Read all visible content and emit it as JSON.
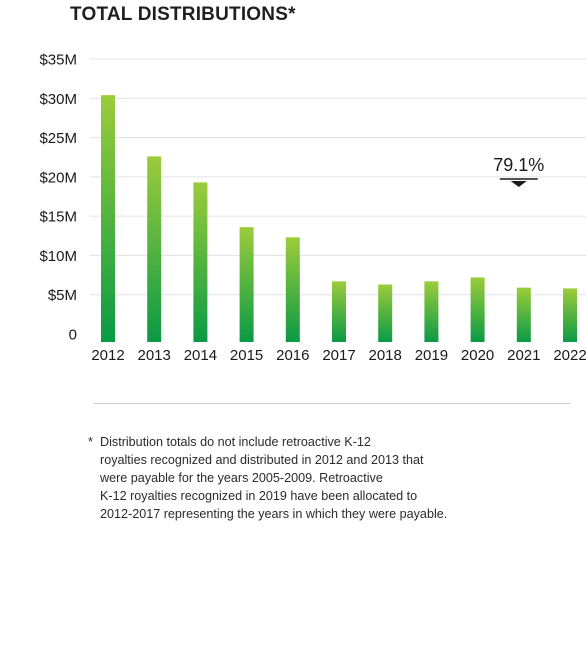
{
  "chart_data": {
    "type": "bar",
    "title": "TOTAL DISTRIBUTIONS*",
    "categories": [
      "2012",
      "2013",
      "2014",
      "2015",
      "2016",
      "2017",
      "2018",
      "2019",
      "2020",
      "2021",
      "2022"
    ],
    "values": [
      30.4,
      22.6,
      19.3,
      13.6,
      12.3,
      6.7,
      6.3,
      6.7,
      7.2,
      5.9,
      5.8
    ],
    "unit": "$M",
    "ylim": [
      0,
      35
    ],
    "yticks": [
      {
        "value": 0,
        "label": "0"
      },
      {
        "value": 5,
        "label": "$5M"
      },
      {
        "value": 10,
        "label": "$10M"
      },
      {
        "value": 15,
        "label": "$15M"
      },
      {
        "value": 20,
        "label": "$20M"
      },
      {
        "value": 25,
        "label": "$25M"
      },
      {
        "value": 30,
        "label": "$30M"
      },
      {
        "value": 35,
        "label": "$35M"
      }
    ],
    "grid": true,
    "colors": {
      "bar_top": "#9ccc3b",
      "bar_bottom": "#0a9a45",
      "grid": "#e3e3e3"
    },
    "annotation": {
      "text": "79.1%",
      "category": "2021"
    }
  },
  "footnote": {
    "marker": "*",
    "text": "Distribution totals do not include retroactive K-12\nroyalties recognized and distributed in 2012 and 2013 that\nwere payable for the years 2005-2009. Retroactive\nK-12 royalties recognized in 2019 have been allocated to\n2012-2017 representing the years in which they were payable."
  }
}
